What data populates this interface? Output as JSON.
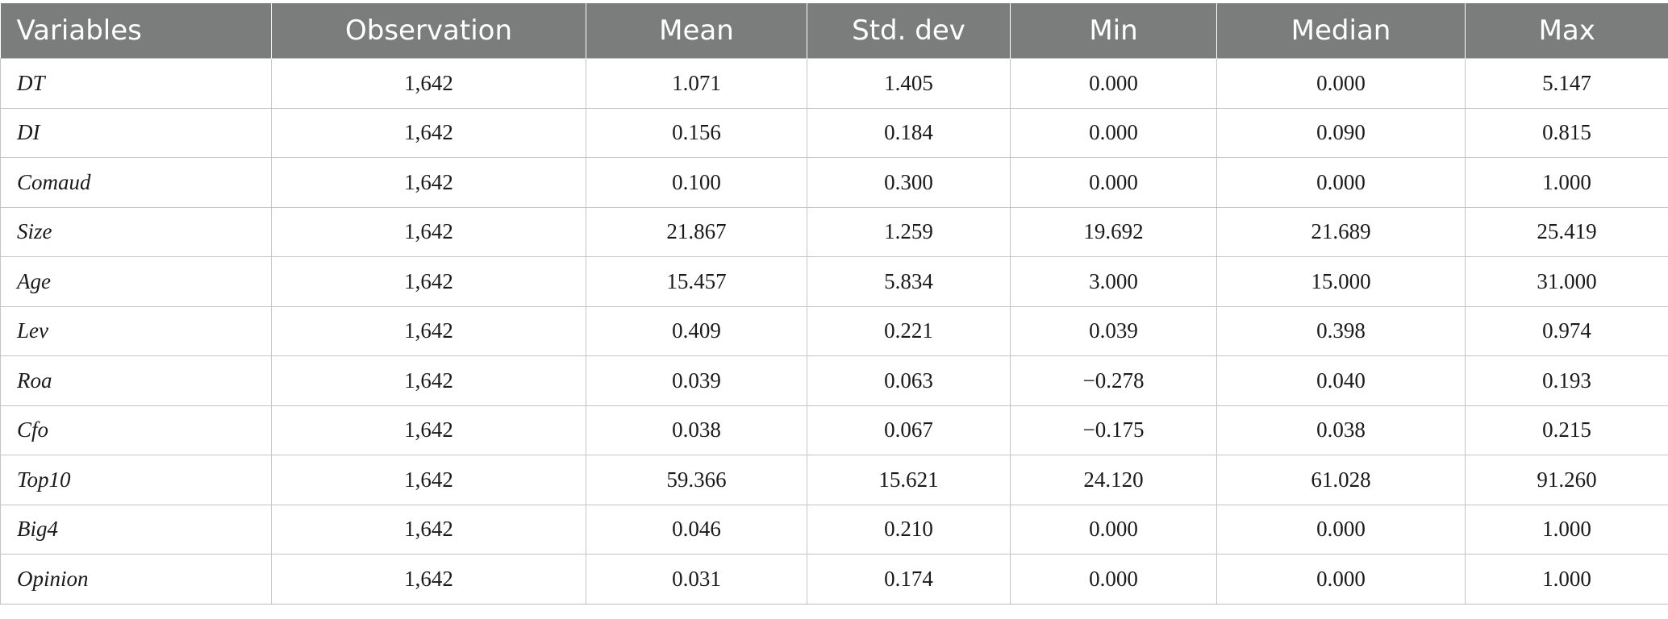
{
  "table": {
    "headers": [
      "Variables",
      "Observation",
      "Mean",
      "Std. dev",
      "Min",
      "Median",
      "Max"
    ],
    "rows": [
      [
        "DT",
        "1,642",
        "1.071",
        "1.405",
        "0.000",
        "0.000",
        "5.147"
      ],
      [
        "DI",
        "1,642",
        "0.156",
        "0.184",
        "0.000",
        "0.090",
        "0.815"
      ],
      [
        "Comaud",
        "1,642",
        "0.100",
        "0.300",
        "0.000",
        "0.000",
        "1.000"
      ],
      [
        "Size",
        "1,642",
        "21.867",
        "1.259",
        "19.692",
        "21.689",
        "25.419"
      ],
      [
        "Age",
        "1,642",
        "15.457",
        "5.834",
        "3.000",
        "15.000",
        "31.000"
      ],
      [
        "Lev",
        "1,642",
        "0.409",
        "0.221",
        "0.039",
        "0.398",
        "0.974"
      ],
      [
        "Roa",
        "1,642",
        "0.039",
        "0.063",
        "−0.278",
        "0.040",
        "0.193"
      ],
      [
        "Cfo",
        "1,642",
        "0.038",
        "0.067",
        "−0.175",
        "0.038",
        "0.215"
      ],
      [
        "Top10",
        "1,642",
        "59.366",
        "15.621",
        "24.120",
        "61.028",
        "91.260"
      ],
      [
        "Big4",
        "1,642",
        "0.046",
        "0.210",
        "0.000",
        "0.000",
        "1.000"
      ],
      [
        "Opinion",
        "1,642",
        "0.031",
        "0.174",
        "0.000",
        "0.000",
        "1.000"
      ]
    ]
  },
  "colors": {
    "header_bg": "#7b7d7c",
    "header_text": "#ffffff",
    "grid": "#c4c4c4"
  }
}
